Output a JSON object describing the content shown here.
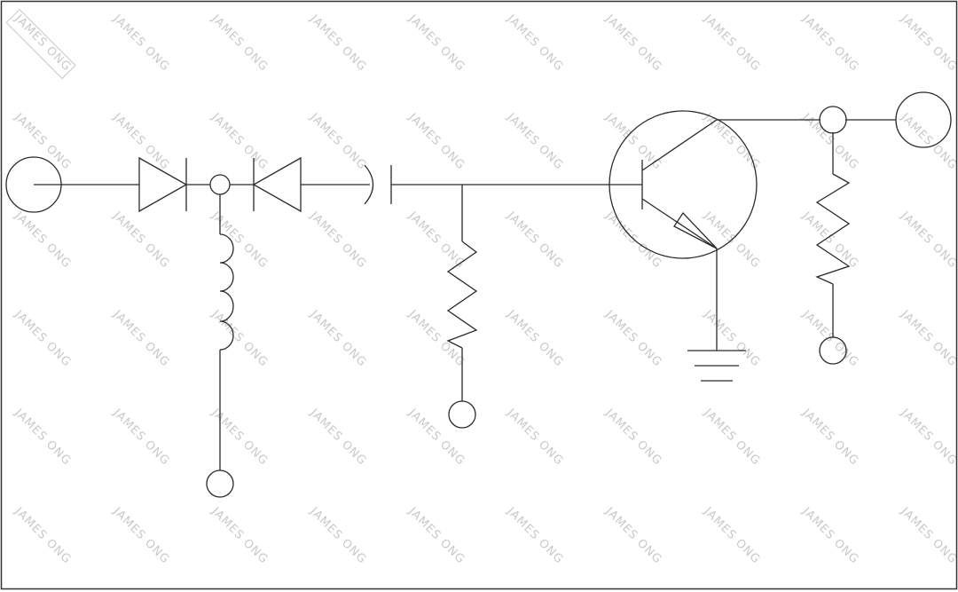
{
  "watermark": {
    "text": "JAMES ONG",
    "color": "#c9c9c9"
  },
  "colors": {
    "line": "#2a2a2a",
    "frame": "#333333",
    "background": "#ffffff"
  },
  "components": [
    "input-terminal",
    "diode-1",
    "junction-node",
    "diode-2",
    "capacitor",
    "inductor",
    "inductor-terminal",
    "resistor-1",
    "resistor-1-terminal",
    "npn-transistor",
    "ground-symbol",
    "output-node",
    "output-terminal",
    "resistor-2",
    "resistor-2-terminal"
  ]
}
